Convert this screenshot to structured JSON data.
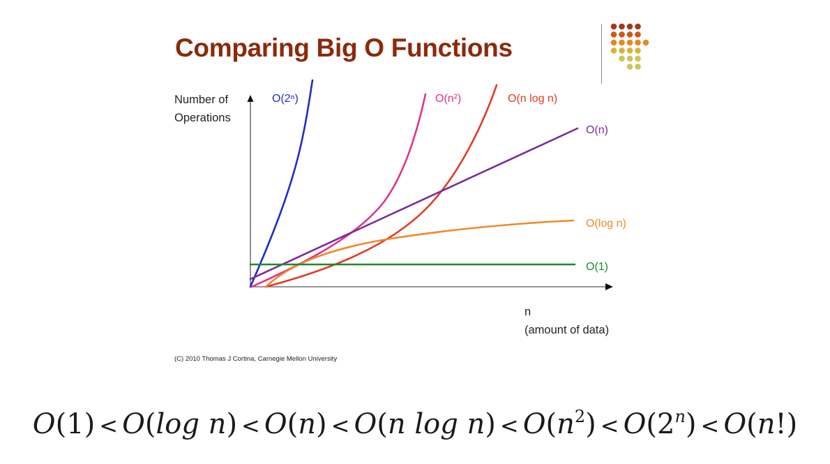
{
  "slide": {
    "title": "Comparing Big O Functions",
    "copyright": "(C) 2010 Thomas J Cortina, Carnegie Mellon University"
  },
  "decoration": {
    "icon": "dot-grid-icon",
    "colors": [
      "#a8361a",
      "#c75a1c",
      "#e08a22",
      "#d7b43a",
      "#cfc45a"
    ]
  },
  "chart_data": {
    "type": "line",
    "title": "Comparing Big O Functions",
    "ylabel_lines": [
      "Number of",
      "Operations"
    ],
    "xlabel_lines": [
      "n",
      "(amount of data)"
    ],
    "grid": false,
    "axis_ticks": "none",
    "series": [
      {
        "name": "O(2ⁿ)",
        "color": "#1f2ccc",
        "shape": "exponential"
      },
      {
        "name": "O(n²)",
        "color": "#e0338a",
        "shape": "quadratic"
      },
      {
        "name": "O(n log n)",
        "color": "#e13a24",
        "shape": "linearithmic"
      },
      {
        "name": "O(n)",
        "color": "#7a2c9c",
        "shape": "linear"
      },
      {
        "name": "O(log n)",
        "color": "#f0892a",
        "shape": "logarithmic"
      },
      {
        "name": "O(1)",
        "color": "#1d8a2a",
        "shape": "constant"
      }
    ]
  },
  "footer": {
    "order_terms": [
      "O(1)",
      "O(log n)",
      "O(n)",
      "O(n log n)",
      "O(n²)",
      "O(2ⁿ)",
      "O(n!)"
    ],
    "separator": "<"
  }
}
